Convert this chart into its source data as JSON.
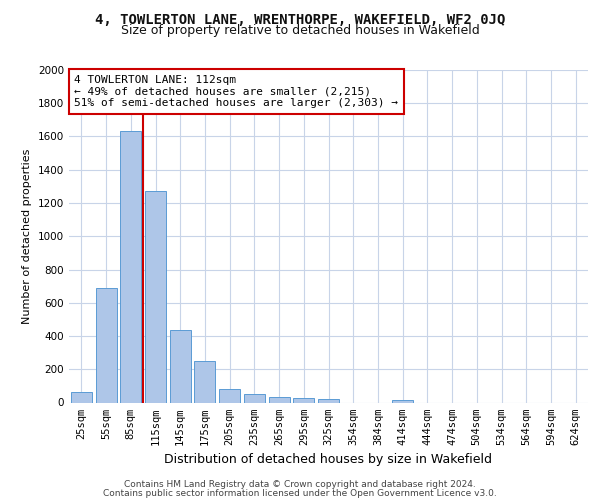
{
  "title_line1": "4, TOWLERTON LANE, WRENTHORPE, WAKEFIELD, WF2 0JQ",
  "title_line2": "Size of property relative to detached houses in Wakefield",
  "xlabel": "Distribution of detached houses by size in Wakefield",
  "ylabel": "Number of detached properties",
  "footer_line1": "Contains HM Land Registry data © Crown copyright and database right 2024.",
  "footer_line2": "Contains public sector information licensed under the Open Government Licence v3.0.",
  "categories": [
    "25sqm",
    "55sqm",
    "85sqm",
    "115sqm",
    "145sqm",
    "175sqm",
    "205sqm",
    "235sqm",
    "265sqm",
    "295sqm",
    "325sqm",
    "354sqm",
    "384sqm",
    "414sqm",
    "444sqm",
    "474sqm",
    "504sqm",
    "534sqm",
    "564sqm",
    "594sqm",
    "624sqm"
  ],
  "values": [
    65,
    690,
    1635,
    1275,
    435,
    248,
    82,
    50,
    35,
    25,
    22,
    0,
    0,
    18,
    0,
    0,
    0,
    0,
    0,
    0,
    0
  ],
  "bar_color": "#aec6e8",
  "bar_edge_color": "#5b9bd5",
  "property_line_color": "#cc0000",
  "annotation_text": "4 TOWLERTON LANE: 112sqm\n← 49% of detached houses are smaller (2,215)\n51% of semi-detached houses are larger (2,303) →",
  "annotation_box_color": "#cc0000",
  "ylim": [
    0,
    2000
  ],
  "yticks": [
    0,
    200,
    400,
    600,
    800,
    1000,
    1200,
    1400,
    1600,
    1800,
    2000
  ],
  "bg_color": "#ffffff",
  "grid_color": "#c8d4e8",
  "title_fontsize": 10,
  "subtitle_fontsize": 9,
  "ylabel_fontsize": 8,
  "xlabel_fontsize": 9,
  "tick_fontsize": 7.5,
  "footer_fontsize": 6.5,
  "annot_fontsize": 8
}
